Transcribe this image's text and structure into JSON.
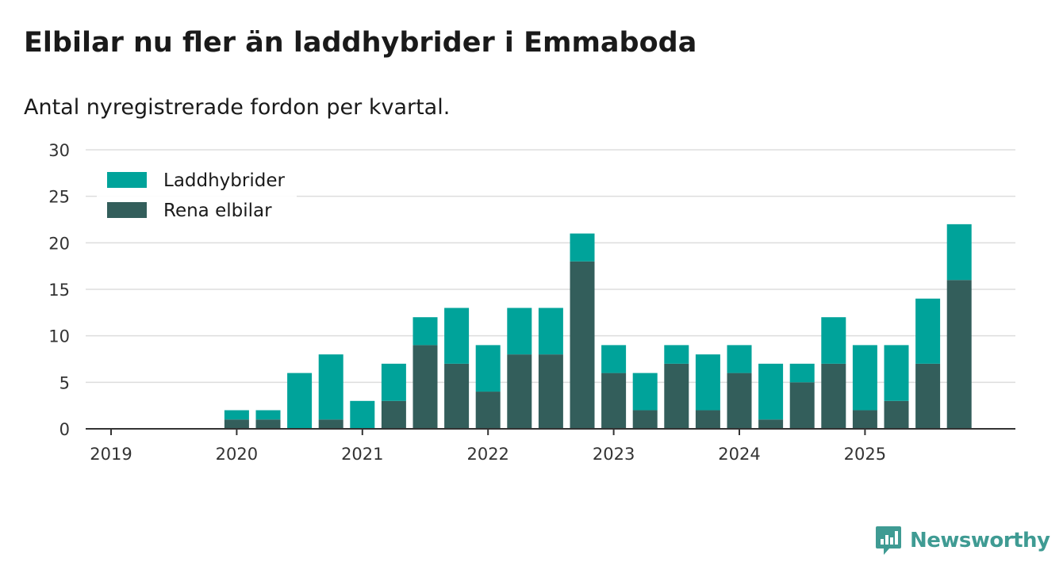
{
  "title": "Elbilar nu fler än laddhybrider i Emmaboda",
  "subtitle": "Antal nyregistrerade fordon per kvartal.",
  "brand": {
    "name": "Newsworthy",
    "color": "#3f9b93"
  },
  "colors": {
    "laddhybrider": "#00a39a",
    "rena_elbilar": "#335e5b",
    "grid": "#dddddd",
    "axis": "#333333"
  },
  "chart_data": {
    "type": "bar",
    "stacked": true,
    "title": "Elbilar nu fler än laddhybrider i Emmaboda",
    "subtitle": "Antal nyregistrerade fordon per kvartal.",
    "xlabel": "",
    "ylabel": "",
    "ylim": [
      0,
      30
    ],
    "yticks": [
      0,
      5,
      10,
      15,
      20,
      25,
      30
    ],
    "grid": true,
    "legend_position": "top-left",
    "year_ticks": [
      "2019",
      "2020",
      "2021",
      "2022",
      "2023",
      "2024",
      "2025"
    ],
    "categories": [
      "2019 Q1",
      "2019 Q2",
      "2019 Q3",
      "2019 Q4",
      "2020 Q1",
      "2020 Q2",
      "2020 Q3",
      "2020 Q4",
      "2021 Q1",
      "2021 Q2",
      "2021 Q3",
      "2021 Q4",
      "2022 Q1",
      "2022 Q2",
      "2022 Q3",
      "2022 Q4",
      "2023 Q1",
      "2023 Q2",
      "2023 Q3",
      "2023 Q4",
      "2024 Q1",
      "2024 Q2",
      "2024 Q3",
      "2024 Q4",
      "2025 Q1",
      "2025 Q2",
      "2025 Q3",
      "2025 Q4"
    ],
    "series": [
      {
        "name": "Rena elbilar",
        "color": "#335e5b",
        "values": [
          0,
          0,
          0,
          0,
          1,
          1,
          0,
          1,
          0,
          3,
          9,
          7,
          4,
          8,
          8,
          18,
          6,
          2,
          7,
          2,
          6,
          1,
          5,
          7,
          2,
          3,
          7,
          16
        ]
      },
      {
        "name": "Laddhybrider",
        "color": "#00a39a",
        "values": [
          0,
          0,
          0,
          0,
          1,
          1,
          6,
          7,
          3,
          4,
          3,
          6,
          5,
          5,
          5,
          3,
          3,
          4,
          2,
          6,
          3,
          6,
          2,
          5,
          7,
          6,
          7,
          6
        ]
      }
    ],
    "legend": [
      "Laddhybrider",
      "Rena elbilar"
    ]
  }
}
